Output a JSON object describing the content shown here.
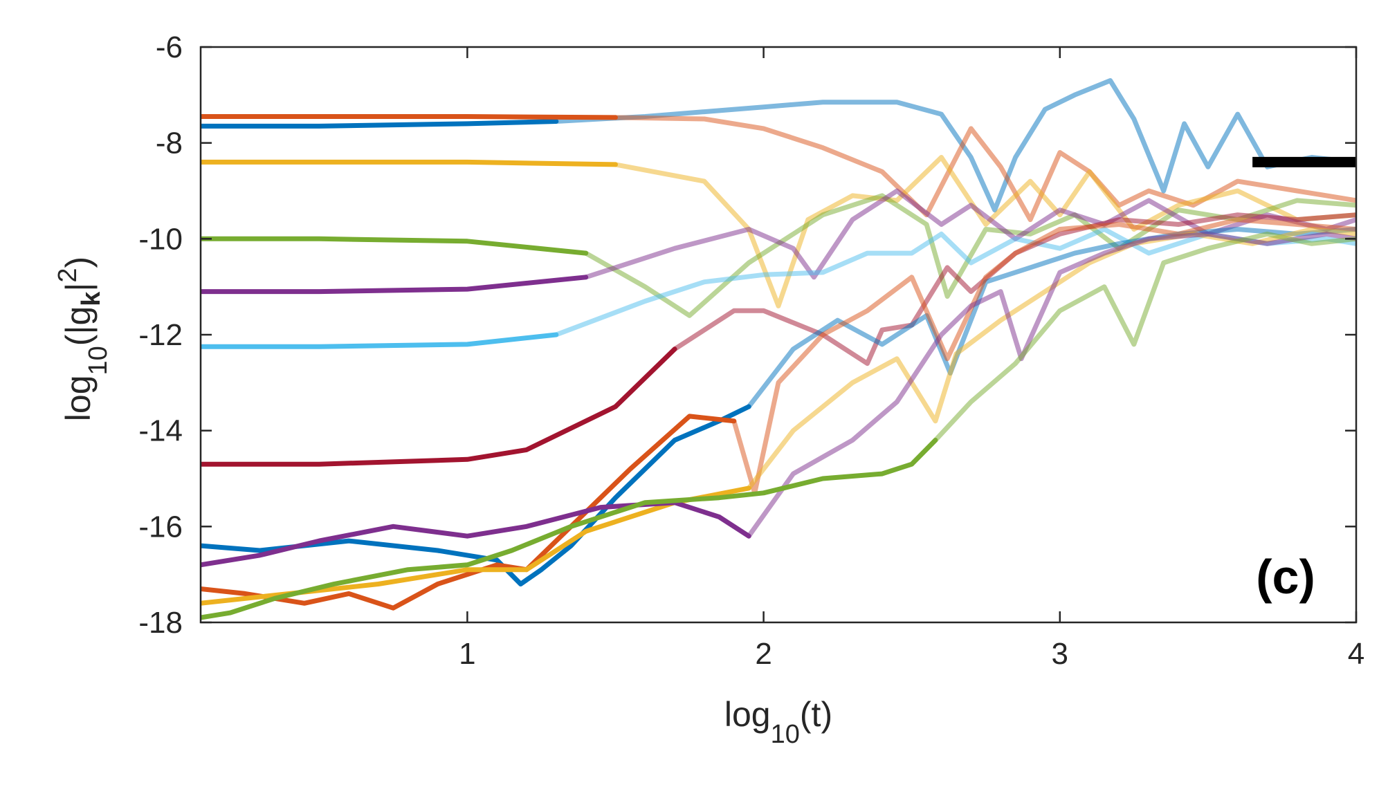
{
  "chart_data": {
    "type": "line",
    "panel_label": "(c)",
    "xlabel": {
      "prefix": "log",
      "sub": "10",
      "suffix": "(t)"
    },
    "ylabel": {
      "prefix": "log",
      "sub": "10",
      "mid": "(|g",
      "bold_sub": "k",
      "end": "|",
      "sup": "2",
      "close": ")"
    },
    "xlim": [
      0.1,
      4
    ],
    "ylim": [
      -18,
      -6
    ],
    "xticks": [
      1,
      2,
      3,
      4
    ],
    "yticks": [
      -18,
      -16,
      -14,
      -12,
      -10,
      -8,
      -6
    ],
    "grid": false,
    "saturation_level": {
      "x": [
        3.65,
        4.0
      ],
      "y": -8.4,
      "color": "#000000"
    },
    "series": [
      {
        "color": "#0072BD",
        "faded_after": 1.45,
        "x": [
          0.1,
          0.5,
          1.0,
          1.3,
          1.6,
          1.8,
          2.0,
          2.2,
          2.45,
          2.6,
          2.7,
          2.78,
          2.85,
          2.95,
          3.05,
          3.17,
          3.25,
          3.35,
          3.42,
          3.5,
          3.6,
          3.7,
          3.85,
          4.0
        ],
        "y": [
          -7.65,
          -7.65,
          -7.6,
          -7.55,
          -7.45,
          -7.35,
          -7.25,
          -7.15,
          -7.15,
          -7.4,
          -8.3,
          -9.4,
          -8.3,
          -7.3,
          -7.0,
          -6.7,
          -7.5,
          -9.0,
          -7.6,
          -8.5,
          -7.4,
          -8.5,
          -8.3,
          -8.4
        ]
      },
      {
        "color": "#D95319",
        "faded_after": 1.6,
        "x": [
          0.1,
          0.5,
          1.0,
          1.5,
          1.8,
          2.0,
          2.2,
          2.4,
          2.55,
          2.7,
          2.8,
          2.9,
          3.0,
          3.1,
          3.2,
          3.3,
          3.45,
          3.6,
          3.8,
          4.0
        ],
        "y": [
          -7.45,
          -7.45,
          -7.45,
          -7.47,
          -7.5,
          -7.7,
          -8.1,
          -8.6,
          -9.5,
          -7.7,
          -8.5,
          -9.6,
          -8.2,
          -8.6,
          -9.3,
          -9.0,
          -9.3,
          -8.8,
          -9.0,
          -9.2
        ]
      },
      {
        "color": "#EDB120",
        "faded_after": 1.7,
        "x": [
          0.1,
          0.5,
          1.0,
          1.5,
          1.8,
          1.95,
          2.05,
          2.15,
          2.3,
          2.45,
          2.6,
          2.75,
          2.9,
          3.0,
          3.1,
          3.25,
          3.4,
          3.6,
          3.8,
          4.0
        ],
        "y": [
          -8.4,
          -8.4,
          -8.4,
          -8.45,
          -8.8,
          -9.8,
          -11.4,
          -9.6,
          -9.1,
          -9.2,
          -8.3,
          -9.7,
          -8.8,
          -9.5,
          -8.6,
          -9.8,
          -9.3,
          -9.0,
          -9.6,
          -9.5
        ]
      },
      {
        "color": "#77AC30",
        "faded_after": 1.55,
        "x": [
          0.1,
          0.5,
          1.0,
          1.4,
          1.6,
          1.75,
          1.95,
          2.2,
          2.4,
          2.55,
          2.62,
          2.75,
          2.9,
          3.05,
          3.2,
          3.4,
          3.6,
          3.8,
          4.0
        ],
        "y": [
          -10.0,
          -10.0,
          -10.05,
          -10.3,
          -11.0,
          -11.6,
          -10.5,
          -9.5,
          -9.1,
          -9.7,
          -11.2,
          -9.8,
          -9.9,
          -9.5,
          -10.2,
          -9.4,
          -9.6,
          -9.2,
          -9.3
        ]
      },
      {
        "color": "#7E2F8E",
        "faded_after": 1.5,
        "x": [
          0.1,
          0.5,
          1.0,
          1.4,
          1.7,
          1.95,
          2.1,
          2.17,
          2.3,
          2.45,
          2.6,
          2.7,
          2.85,
          3.0,
          3.15,
          3.3,
          3.5,
          3.7,
          3.9,
          4.0
        ],
        "y": [
          -11.1,
          -11.1,
          -11.05,
          -10.8,
          -10.2,
          -9.8,
          -10.2,
          -10.8,
          -9.6,
          -9.0,
          -9.7,
          -9.3,
          -10.0,
          -9.4,
          -9.7,
          -9.2,
          -9.9,
          -9.5,
          -9.8,
          -9.6
        ]
      },
      {
        "color": "#4DBEEE",
        "faded_after": 1.55,
        "x": [
          0.1,
          0.5,
          1.0,
          1.3,
          1.6,
          1.8,
          2.0,
          2.2,
          2.35,
          2.5,
          2.6,
          2.7,
          2.85,
          3.0,
          3.15,
          3.3,
          3.5,
          3.7,
          3.9,
          4.0
        ],
        "y": [
          -12.25,
          -12.25,
          -12.2,
          -12.0,
          -11.3,
          -10.9,
          -10.75,
          -10.7,
          -10.3,
          -10.3,
          -9.9,
          -10.5,
          -10.0,
          -10.2,
          -9.8,
          -10.3,
          -9.9,
          -10.1,
          -10.0,
          -10.1
        ]
      },
      {
        "color": "#A2142F",
        "faded_after": 1.7,
        "x": [
          0.1,
          0.5,
          1.0,
          1.2,
          1.5,
          1.7,
          1.9,
          2.0,
          2.2,
          2.35,
          2.4,
          2.5,
          2.62,
          2.7,
          2.85,
          3.0,
          3.2,
          3.4,
          3.6,
          3.8,
          4.0
        ],
        "y": [
          -14.7,
          -14.7,
          -14.6,
          -14.4,
          -13.5,
          -12.3,
          -11.5,
          -11.5,
          -12.0,
          -12.6,
          -11.9,
          -11.8,
          -10.6,
          -11.1,
          -10.3,
          -9.9,
          -9.6,
          -9.7,
          -9.5,
          -9.6,
          -9.5
        ]
      },
      {
        "color": "#0072BD",
        "faded_after": 1.95,
        "x": [
          0.1,
          0.3,
          0.6,
          0.9,
          1.1,
          1.18,
          1.25,
          1.35,
          1.5,
          1.7,
          1.85,
          1.95,
          2.1,
          2.25,
          2.4,
          2.55,
          2.63,
          2.75,
          2.9,
          3.05,
          3.2,
          3.4,
          3.6,
          3.8,
          4.0
        ],
        "y": [
          -16.4,
          -16.5,
          -16.3,
          -16.5,
          -16.7,
          -17.2,
          -16.9,
          -16.4,
          -15.4,
          -14.2,
          -13.8,
          -13.5,
          -12.3,
          -11.7,
          -12.2,
          -11.6,
          -12.8,
          -10.9,
          -10.6,
          -10.3,
          -10.1,
          -9.9,
          -9.8,
          -9.9,
          -9.8
        ]
      },
      {
        "color": "#D95319",
        "faded_after": 1.95,
        "x": [
          0.1,
          0.25,
          0.45,
          0.6,
          0.75,
          0.9,
          1.1,
          1.2,
          1.35,
          1.55,
          1.75,
          1.9,
          1.97,
          2.05,
          2.2,
          2.35,
          2.5,
          2.62,
          2.75,
          2.85,
          3.0,
          3.2,
          3.4,
          3.6,
          3.8,
          4.0
        ],
        "y": [
          -17.3,
          -17.4,
          -17.6,
          -17.4,
          -17.7,
          -17.2,
          -16.8,
          -16.9,
          -16.0,
          -14.8,
          -13.7,
          -13.8,
          -15.3,
          -13.0,
          -12.0,
          -11.5,
          -10.8,
          -12.5,
          -10.8,
          -10.3,
          -9.8,
          -9.7,
          -9.9,
          -9.6,
          -9.7,
          -9.8
        ]
      },
      {
        "color": "#EDB120",
        "faded_after": 2.05,
        "x": [
          0.1,
          0.4,
          0.7,
          1.0,
          1.2,
          1.4,
          1.7,
          1.95,
          2.1,
          2.3,
          2.45,
          2.58,
          2.65,
          2.8,
          2.95,
          3.1,
          3.25,
          3.45,
          3.65,
          3.85,
          4.0
        ],
        "y": [
          -17.6,
          -17.4,
          -17.2,
          -16.9,
          -16.9,
          -16.1,
          -15.5,
          -15.2,
          -14.0,
          -13.0,
          -12.5,
          -13.8,
          -12.4,
          -11.7,
          -11.1,
          -10.5,
          -10.1,
          -9.9,
          -10.1,
          -9.8,
          -9.9
        ]
      },
      {
        "color": "#7E2F8E",
        "faded_after": 2.05,
        "x": [
          0.1,
          0.3,
          0.5,
          0.75,
          1.0,
          1.2,
          1.45,
          1.7,
          1.85,
          1.95,
          2.1,
          2.3,
          2.45,
          2.6,
          2.7,
          2.8,
          2.87,
          3.0,
          3.15,
          3.3,
          3.5,
          3.7,
          3.9,
          4.0
        ],
        "y": [
          -16.8,
          -16.6,
          -16.3,
          -16.0,
          -16.2,
          -16.0,
          -15.6,
          -15.5,
          -15.8,
          -16.2,
          -14.9,
          -14.2,
          -13.4,
          -12.0,
          -11.4,
          -11.1,
          -12.5,
          -10.7,
          -10.3,
          -10.0,
          -9.9,
          -10.1,
          -9.9,
          -10.0
        ]
      },
      {
        "color": "#77AC30",
        "faded_after": 2.6,
        "x": [
          0.1,
          0.2,
          0.35,
          0.55,
          0.8,
          1.0,
          1.15,
          1.35,
          1.6,
          1.85,
          2.0,
          2.2,
          2.4,
          2.5,
          2.58,
          2.7,
          2.85,
          3.0,
          3.15,
          3.25,
          3.35,
          3.5,
          3.7,
          3.85,
          4.0
        ],
        "y": [
          -17.9,
          -17.8,
          -17.5,
          -17.2,
          -16.9,
          -16.8,
          -16.5,
          -16.0,
          -15.5,
          -15.4,
          -15.3,
          -15.0,
          -14.9,
          -14.7,
          -14.2,
          -13.4,
          -12.6,
          -11.5,
          -11.0,
          -12.2,
          -10.5,
          -10.2,
          -9.9,
          -10.1,
          -10.0
        ]
      }
    ]
  }
}
